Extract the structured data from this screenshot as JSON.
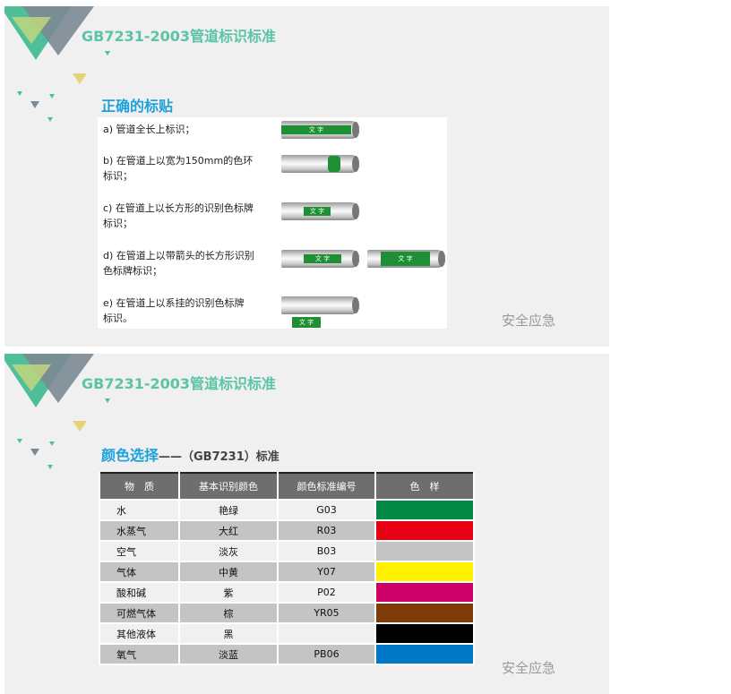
{
  "slide1": {
    "title": "GB7231-2003管道标识标准",
    "subtitle": "正确的标贴",
    "items": [
      {
        "text": "a) 管道全长上标识；"
      },
      {
        "text": "b) 在管道上以宽为150mm的色环标识；"
      },
      {
        "text": "c) 在管道上以长方形的识别色标牌标识；"
      },
      {
        "text": "d) 在管道上以带箭头的长方形识别色标牌标识；"
      },
      {
        "text": "e) 在管道上以系挂的识别色标牌标识。"
      }
    ],
    "pipe_label": "文 字",
    "label_color": "#1e8f35",
    "watermark": "安全应急"
  },
  "slide2": {
    "title": "GB7231-2003管道标识标准",
    "subtitle": "颜色选择",
    "subtitle_rest": "——（GB7231）标准",
    "headers": [
      "物　质",
      "基本识别颜色",
      "颜色标准编号",
      "色　样"
    ],
    "rows": [
      {
        "substance": "水",
        "color_name": "艳绿",
        "code": "G03",
        "swatch": "#008844"
      },
      {
        "substance": "水蒸气",
        "color_name": "大红",
        "code": "R03",
        "swatch": "#e60012"
      },
      {
        "substance": "空气",
        "color_name": "淡灰",
        "code": "B03",
        "swatch": "#c4c4c4"
      },
      {
        "substance": "气体",
        "color_name": "中黄",
        "code": "Y07",
        "swatch": "#fff100"
      },
      {
        "substance": "酸和碱",
        "color_name": "紫",
        "code": "P02",
        "swatch": "#cc0066"
      },
      {
        "substance": "可燃气体",
        "color_name": "棕",
        "code": "YR05",
        "swatch": "#7f3b08"
      },
      {
        "substance": "其他液体",
        "color_name": "黑",
        "code": "",
        "swatch": "#000000"
      },
      {
        "substance": "氧气",
        "color_name": "淡蓝",
        "code": "PB06",
        "swatch": "#0078c8"
      }
    ],
    "watermark": "安全应急"
  },
  "theme": {
    "title_color": "#5cc4a6",
    "subtitle_color": "#1ea0dd"
  }
}
